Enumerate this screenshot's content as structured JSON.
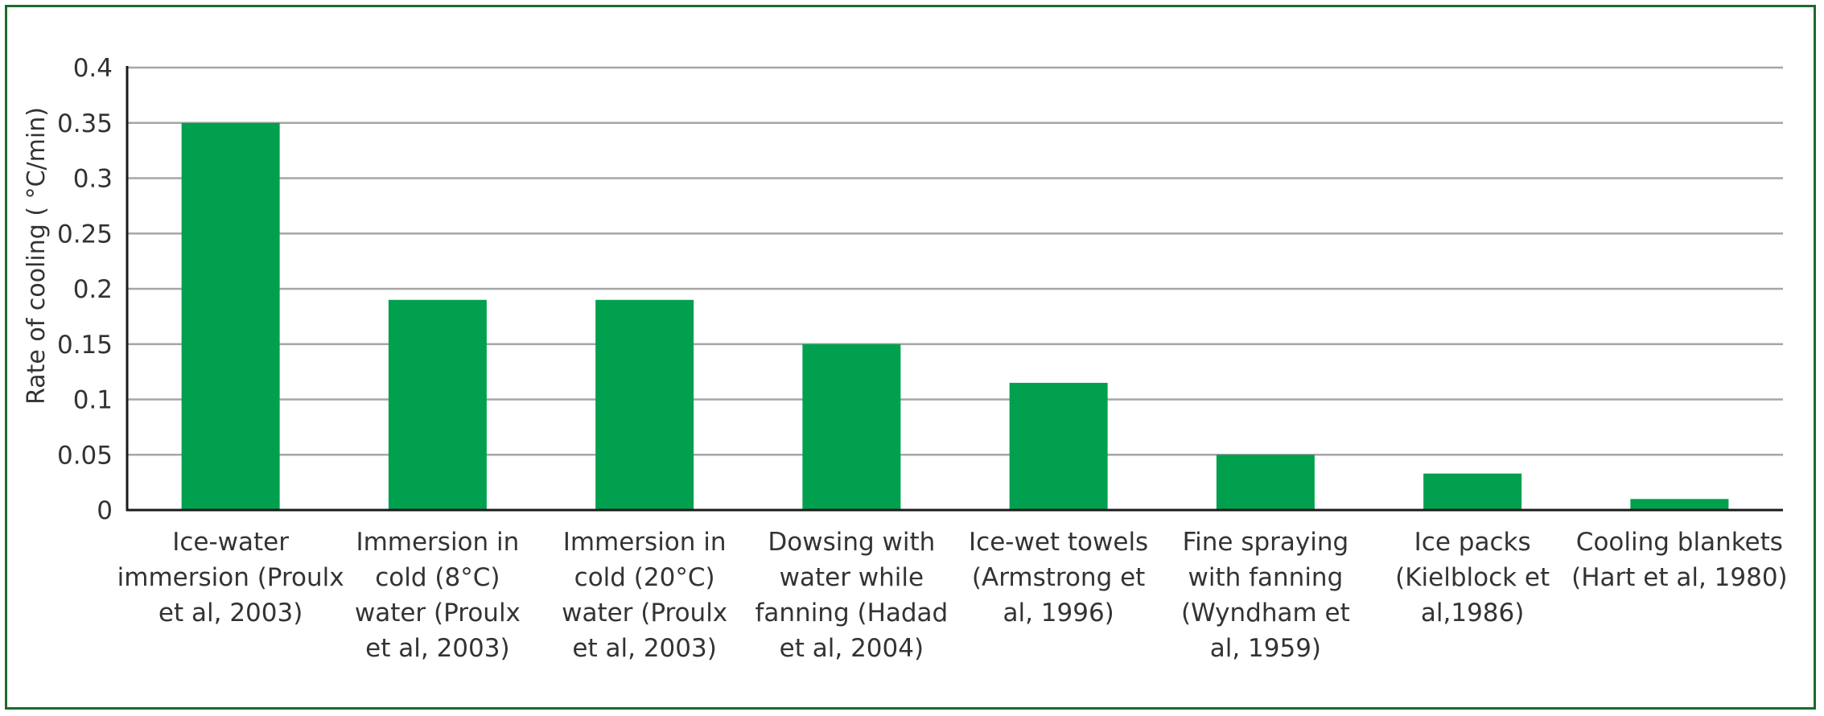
{
  "chart_data": {
    "type": "bar",
    "title": "",
    "xlabel": "",
    "ylabel": "Rate of cooling ( °C/min)",
    "ylim": [
      0,
      0.4
    ],
    "yticks": [
      "0",
      "0.05",
      "0.1",
      "0.15",
      "0.2",
      "0.25",
      "0.3",
      "0.35",
      "0.4"
    ],
    "grid": true,
    "categories": [
      [
        "Ice-water",
        "immersion (Proulx",
        "et al, 2003)"
      ],
      [
        "Immersion in",
        "cold (8°C)",
        "water (Proulx",
        "et al, 2003)"
      ],
      [
        "Immersion in",
        "cold (20°C)",
        "water (Proulx",
        "et al, 2003)"
      ],
      [
        "Dowsing with",
        "water while",
        "fanning (Hadad",
        "et al, 2004)"
      ],
      [
        "Ice-wet towels",
        "(Armstrong et",
        "al, 1996)"
      ],
      [
        "Fine spraying",
        "with fanning",
        "(Wyndham et",
        "al, 1959)"
      ],
      [
        "Ice packs",
        "(Kielblock et",
        "al,1986)"
      ],
      [
        "Cooling blankets",
        "(Hart et al, 1980)"
      ]
    ],
    "values": [
      0.35,
      0.19,
      0.19,
      0.15,
      0.115,
      0.05,
      0.033,
      0.01
    ],
    "colors": {
      "bar": "#00a04f",
      "grid": "#a6a6a6",
      "axis": "#1a1a1a",
      "border": "#1b6b2c",
      "text": "#333333"
    }
  }
}
